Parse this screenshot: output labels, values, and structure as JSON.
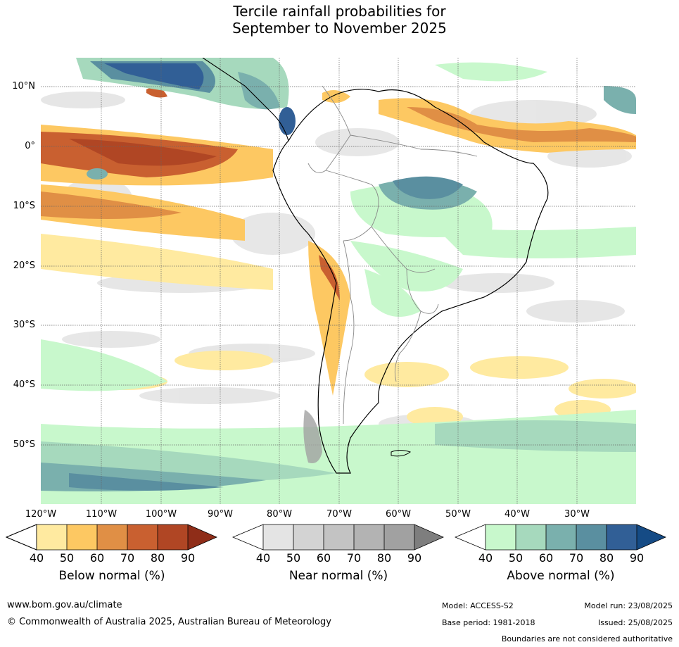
{
  "title_line1": "Tercile rainfall probabilities for",
  "title_line2": "September to November 2025",
  "map": {
    "lat_labels": [
      "10°N",
      "0°",
      "10°S",
      "20°S",
      "30°S",
      "40°S",
      "50°S"
    ],
    "lon_labels": [
      "120°W",
      "110°W",
      "100°W",
      "90°W",
      "80°W",
      "70°W",
      "60°W",
      "50°W",
      "40°W",
      "30°W"
    ]
  },
  "colorbars": [
    {
      "title": "Below normal (%)",
      "ticks": [
        "40",
        "50",
        "60",
        "70",
        "80",
        "90"
      ],
      "colors": [
        "#ffeaa0",
        "#fdc862",
        "#e08f45",
        "#c96030",
        "#b04624",
        "#8f2d18"
      ]
    },
    {
      "title": "Near normal (%)",
      "ticks": [
        "40",
        "50",
        "60",
        "70",
        "80",
        "90"
      ],
      "colors": [
        "#e4e4e4",
        "#d3d3d3",
        "#c3c3c3",
        "#b3b3b3",
        "#a1a1a1",
        "#7e7e7e"
      ]
    },
    {
      "title": "Above normal (%)",
      "ticks": [
        "40",
        "50",
        "60",
        "70",
        "80",
        "90"
      ],
      "colors": [
        "#c8f8cc",
        "#a6d9bd",
        "#7ab0ad",
        "#5a8fa0",
        "#315f96",
        "#154b85"
      ]
    }
  ],
  "footer": {
    "url": "www.bom.gov.au/climate",
    "copyright": "© Commonwealth of Australia 2025, Australian Bureau of Meteorology",
    "model": "Model: ACCESS-S2",
    "base_period": "Base period: 1981-2018",
    "model_run": "Model run: 23/08/2025",
    "issued": "Issued: 25/08/2025",
    "disclaimer": "Boundaries are not considered authoritative"
  }
}
